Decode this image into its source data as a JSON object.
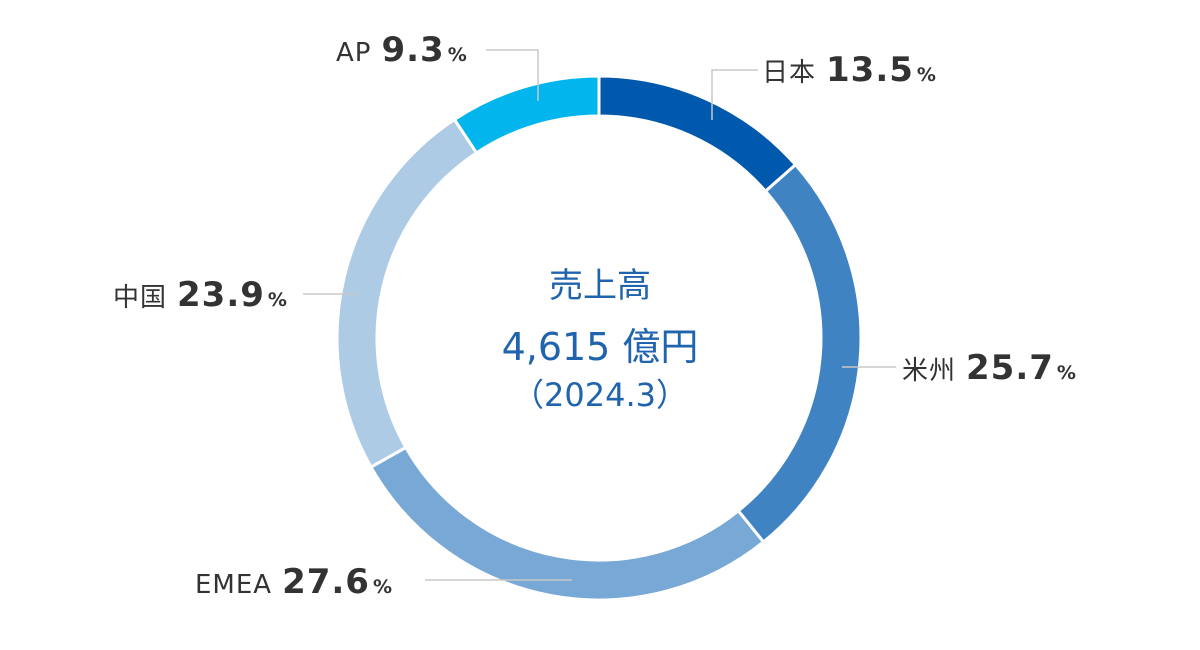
{
  "chart_data": {
    "type": "pie",
    "donut": true,
    "title": "売上高",
    "center_value": "4,615 億円",
    "center_date": "（2024.3）",
    "unit_suffix": "%",
    "slices": [
      {
        "label": "日本",
        "value": 13.5,
        "display": "13.5",
        "color": "#0059ac"
      },
      {
        "label": "米州",
        "value": 25.7,
        "display": "25.7",
        "color": "#3f83c3"
      },
      {
        "label": "EMEA",
        "value": 27.6,
        "display": "27.6",
        "color": "#78a8d6"
      },
      {
        "label": "中国",
        "value": 23.9,
        "display": "23.9",
        "color": "#aecbe6"
      },
      {
        "label": "AP",
        "value": 9.3,
        "display": "9.3",
        "color": "#02b5ec"
      }
    ]
  }
}
